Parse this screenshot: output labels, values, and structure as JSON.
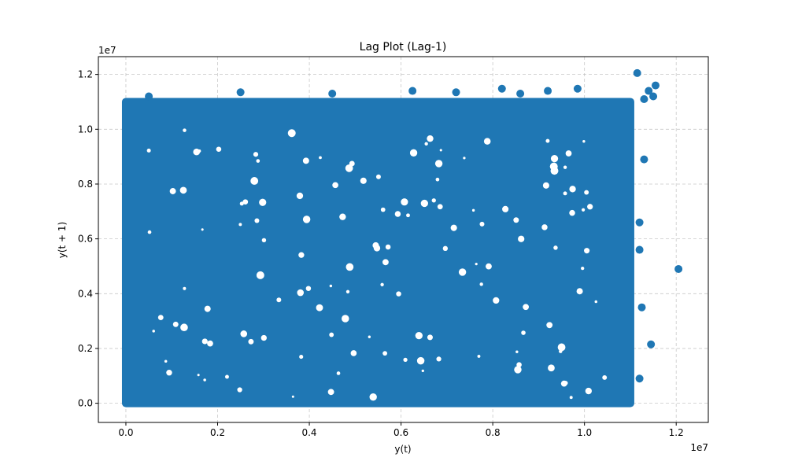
{
  "chart_data": {
    "type": "scatter",
    "title": "Lag Plot (Lag-1)",
    "xlabel": "y(t)",
    "ylabel": "y(t + 1)",
    "xlim": [
      -0.06,
      1.27
    ],
    "ylim": [
      -0.07,
      1.265
    ],
    "x_offset_label": "1e7",
    "y_offset_label": "1e7",
    "x_ticks": [
      0.0,
      0.2,
      0.4,
      0.6,
      0.8,
      1.0,
      1.2
    ],
    "x_tick_labels": [
      "0.0",
      "0.2",
      "0.4",
      "0.6",
      "0.8",
      "1.0",
      "1.2"
    ],
    "y_ticks": [
      0.0,
      0.2,
      0.4,
      0.6,
      0.8,
      1.0,
      1.2
    ],
    "y_tick_labels": [
      "0.0",
      "0.2",
      "0.4",
      "0.6",
      "0.8",
      "1.0",
      "1.2"
    ],
    "grid": true,
    "grid_style": "dashed",
    "marker_color": "#1f77b4",
    "dense_region": {
      "x_range": [
        0.0,
        1.1
      ],
      "y_range": [
        0.0,
        1.1
      ]
    },
    "series": [
      {
        "points": [
          [
            1.115,
            1.205
          ],
          [
            1.205,
            0.49
          ],
          [
            1.12,
            0.09
          ],
          [
            1.145,
            0.215
          ],
          [
            1.155,
            1.16
          ],
          [
            1.14,
            1.14
          ],
          [
            1.13,
            1.11
          ],
          [
            1.15,
            1.12
          ],
          [
            1.125,
            0.35
          ],
          [
            1.12,
            0.56
          ],
          [
            1.13,
            0.89
          ],
          [
            1.12,
            0.66
          ],
          [
            0.82,
            1.148
          ],
          [
            0.985,
            1.148
          ],
          [
            0.92,
            1.14
          ],
          [
            0.625,
            1.14
          ],
          [
            0.25,
            1.135
          ],
          [
            0.05,
            1.12
          ],
          [
            0.45,
            1.13
          ],
          [
            0.72,
            1.135
          ],
          [
            0.86,
            1.13
          ]
        ]
      }
    ]
  }
}
